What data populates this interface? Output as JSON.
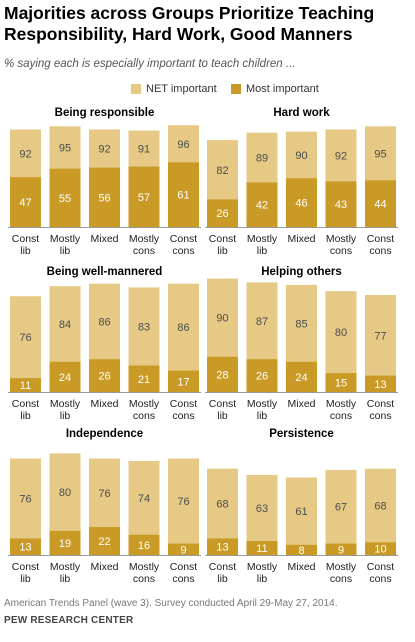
{
  "title": "Majorities across Groups Prioritize Teaching Responsibility, Hard Work, Good Manners",
  "subtitle": "% saying each is especially important to teach children ...",
  "legend": [
    {
      "label": "NET important",
      "color": "#e5c985"
    },
    {
      "label": "Most important",
      "color": "#c99a26"
    }
  ],
  "colors": {
    "net": "#e5c985",
    "most": "#c99a26",
    "net_label": "#4d4d4d",
    "most_label": "#ffffff",
    "axis": "#999999"
  },
  "chart_data": [
    {
      "type": "bar",
      "title": "Being responsible",
      "categories": [
        [
          "Const",
          "lib"
        ],
        [
          "Mostly",
          "lib"
        ],
        [
          "Mixed"
        ],
        [
          "Mostly",
          "cons"
        ],
        [
          "Const",
          "cons"
        ]
      ],
      "series": [
        {
          "name": "NET important",
          "values": [
            92,
            95,
            92,
            91,
            96
          ]
        },
        {
          "name": "Most important",
          "values": [
            47,
            55,
            56,
            57,
            61
          ]
        }
      ],
      "ylim": [
        0,
        100
      ]
    },
    {
      "type": "bar",
      "title": "Hard work",
      "categories": [
        [
          "Const",
          "lib"
        ],
        [
          "Mostly",
          "lib"
        ],
        [
          "Mixed"
        ],
        [
          "Mostly",
          "cons"
        ],
        [
          "Const",
          "cons"
        ]
      ],
      "series": [
        {
          "name": "NET important",
          "values": [
            82,
            89,
            90,
            92,
            95
          ]
        },
        {
          "name": "Most important",
          "values": [
            26,
            42,
            46,
            43,
            44
          ]
        }
      ],
      "ylim": [
        0,
        100
      ]
    },
    {
      "type": "bar",
      "title": "Being well-mannered",
      "categories": [
        [
          "Const",
          "lib"
        ],
        [
          "Mostly",
          "lib"
        ],
        [
          "Mixed"
        ],
        [
          "Mostly",
          "cons"
        ],
        [
          "Const",
          "cons"
        ]
      ],
      "series": [
        {
          "name": "NET important",
          "values": [
            76,
            84,
            86,
            83,
            86
          ]
        },
        {
          "name": "Most important",
          "values": [
            11,
            24,
            26,
            21,
            17
          ]
        }
      ],
      "ylim": [
        0,
        100
      ]
    },
    {
      "type": "bar",
      "title": "Helping others",
      "categories": [
        [
          "Const",
          "lib"
        ],
        [
          "Mostly",
          "lib"
        ],
        [
          "Mixed"
        ],
        [
          "Mostly",
          "cons"
        ],
        [
          "Const",
          "cons"
        ]
      ],
      "series": [
        {
          "name": "NET important",
          "values": [
            90,
            87,
            85,
            80,
            77
          ]
        },
        {
          "name": "Most important",
          "values": [
            28,
            26,
            24,
            15,
            13
          ]
        }
      ],
      "ylim": [
        0,
        100
      ]
    },
    {
      "type": "bar",
      "title": "Independence",
      "categories": [
        [
          "Const",
          "lib"
        ],
        [
          "Mostly",
          "lib"
        ],
        [
          "Mixed"
        ],
        [
          "Mostly",
          "cons"
        ],
        [
          "Const",
          "cons"
        ]
      ],
      "series": [
        {
          "name": "NET important",
          "values": [
            76,
            80,
            76,
            74,
            76
          ]
        },
        {
          "name": "Most important",
          "values": [
            13,
            19,
            22,
            16,
            9
          ]
        }
      ],
      "ylim": [
        0,
        100
      ]
    },
    {
      "type": "bar",
      "title": "Persistence",
      "categories": [
        [
          "Const",
          "lib"
        ],
        [
          "Mostly",
          "lib"
        ],
        [
          "Mixed"
        ],
        [
          "Mostly",
          "cons"
        ],
        [
          "Const",
          "cons"
        ]
      ],
      "series": [
        {
          "name": "NET important",
          "values": [
            68,
            63,
            61,
            67,
            68
          ]
        },
        {
          "name": "Most important",
          "values": [
            13,
            11,
            8,
            9,
            10
          ]
        }
      ],
      "ylim": [
        0,
        100
      ]
    }
  ],
  "source": "American Trends Panel (wave 3). Survey conducted April 29-May 27, 2014.",
  "org": "PEW RESEARCH CENTER"
}
